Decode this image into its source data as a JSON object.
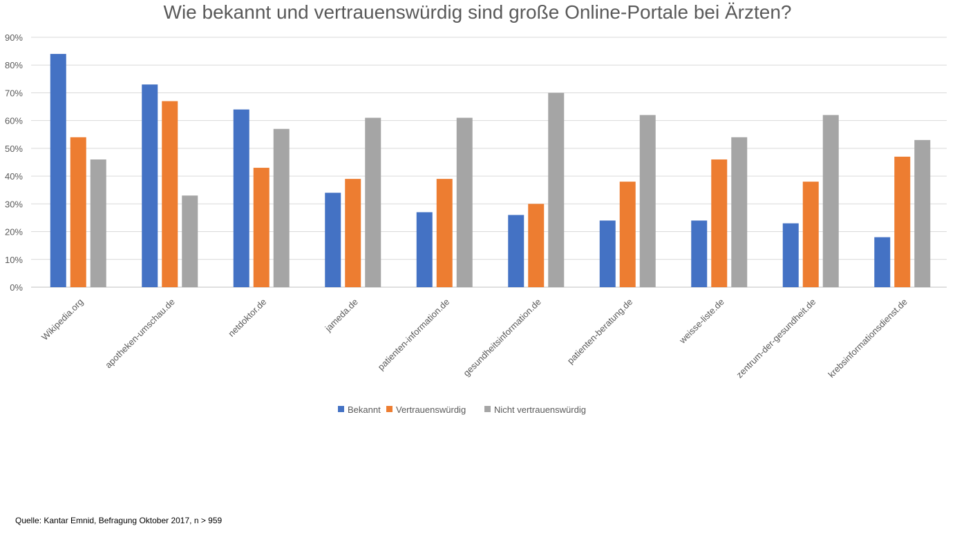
{
  "chart_data": {
    "type": "bar",
    "title": "Wie bekannt und vertrauenswürdig sind große Online-Portale bei Ärzten?",
    "xlabel": "",
    "ylabel": "",
    "ylim": [
      0,
      90
    ],
    "y_ticks": [
      "0%",
      "10%",
      "20%",
      "30%",
      "40%",
      "50%",
      "60%",
      "70%",
      "80%",
      "90%"
    ],
    "grid": true,
    "legend_position": "bottom",
    "categories": [
      "Wikipedia.org",
      "apotheken-umschau.de",
      "netdoktor.de",
      "jameda.de",
      "patienten-information.de",
      "gesundheitsinformation.de",
      "patienten-beratung.de",
      "weisse-liste.de",
      "zentrum-der-gesundheit.de",
      "krebsinformationsdienst.de"
    ],
    "series": [
      {
        "name": "Bekannt",
        "color": "#4472C4",
        "values": [
          84,
          73,
          64,
          34,
          27,
          26,
          24,
          24,
          23,
          18
        ]
      },
      {
        "name": "Vertrauenswürdig",
        "color": "#ED7D31",
        "values": [
          54,
          67,
          43,
          39,
          39,
          30,
          38,
          46,
          38,
          47
        ]
      },
      {
        "name": "Nicht vertrauenswürdig",
        "color": "#A5A5A5",
        "values": [
          46,
          33,
          57,
          61,
          61,
          70,
          62,
          54,
          62,
          53
        ]
      }
    ]
  },
  "source": "Quelle: Kantar Emnid, Befragung Oktober 2017, n > 959"
}
